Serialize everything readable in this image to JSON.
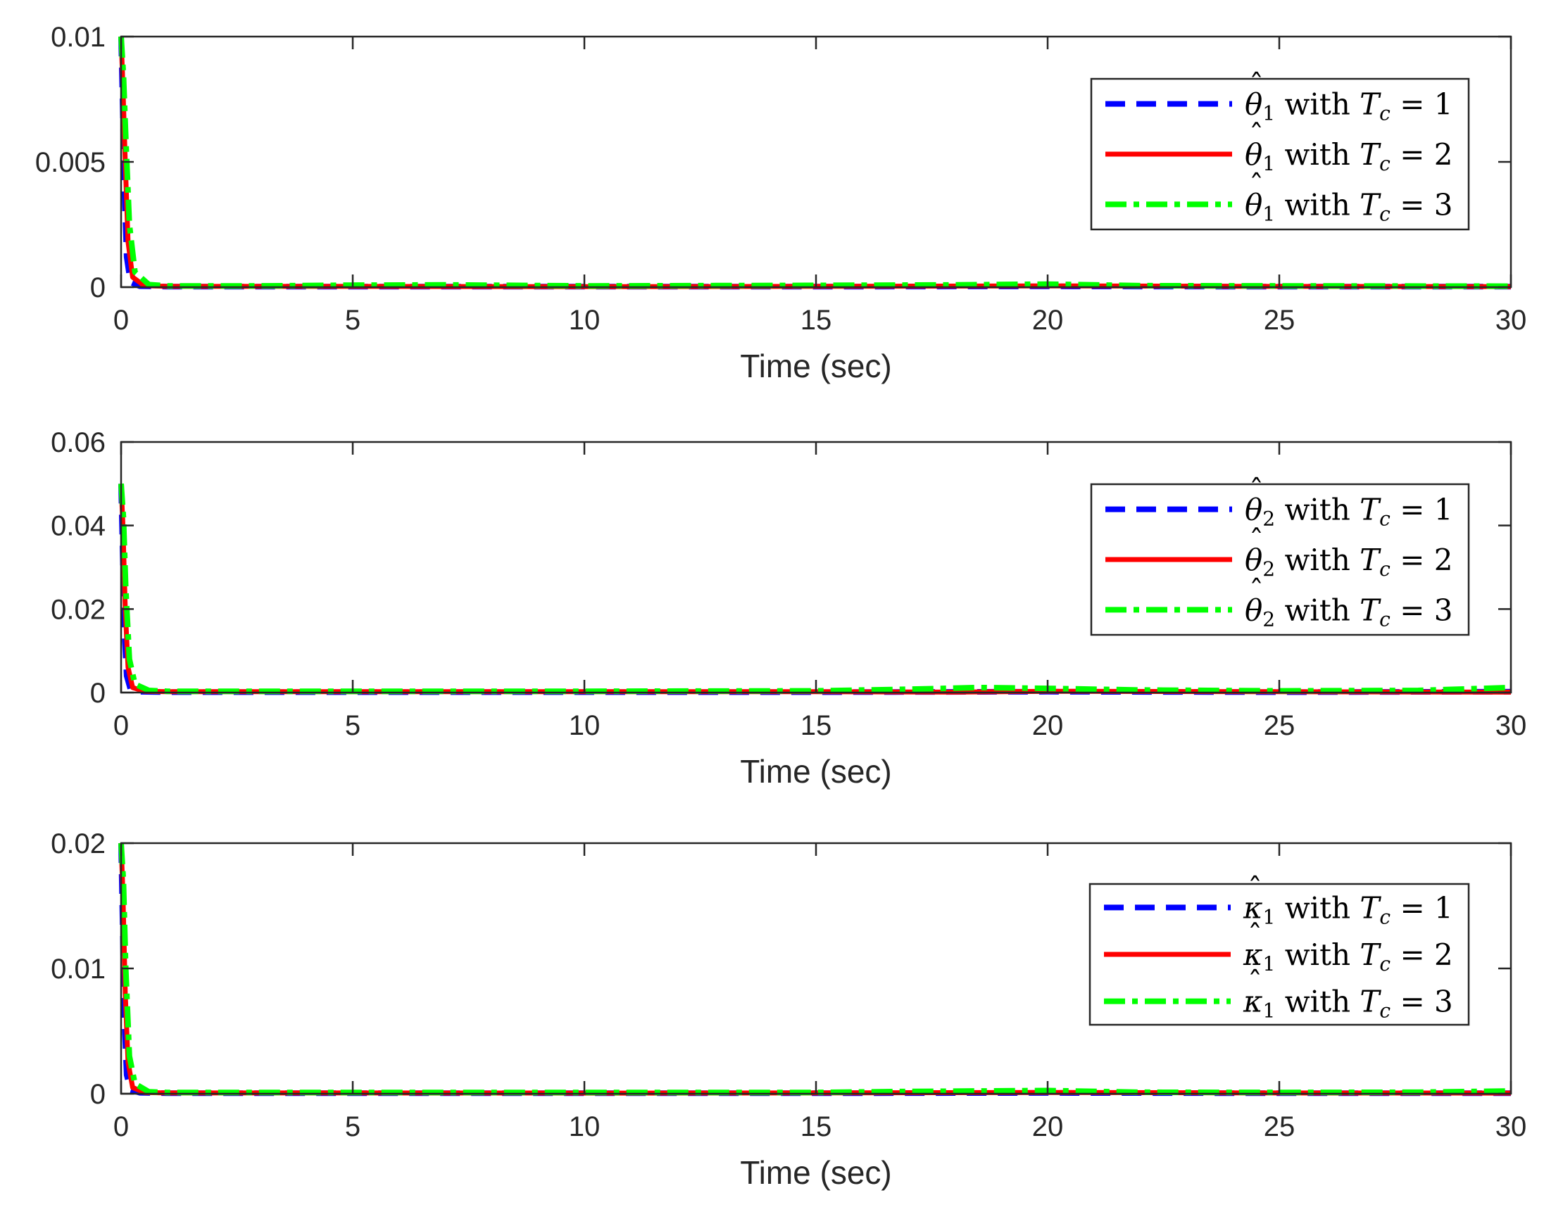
{
  "chart_data": [
    {
      "type": "line",
      "xlabel": "Time (sec)",
      "ylabel": "",
      "xlim": [
        0,
        30
      ],
      "ylim": [
        0,
        0.01
      ],
      "xticks": [
        0,
        5,
        10,
        15,
        20,
        25,
        30
      ],
      "xtick_labels": [
        "0",
        "5",
        "10",
        "15",
        "20",
        "25",
        "30"
      ],
      "yticks": [
        0,
        0.005,
        0.01
      ],
      "ytick_labels": [
        "0",
        "0.005",
        "0.01"
      ],
      "legend_position": "top-right",
      "series": [
        {
          "name": "θ̂1 with Tc = 1",
          "legend": {
            "sym": "θ",
            "sub": "1",
            "mid": " with ",
            "tsym": "T",
            "tsub": "c",
            "eq": " = 1"
          },
          "color": "#0000ff",
          "style": "dashed",
          "x": [
            0,
            0.03,
            0.07,
            0.12,
            0.2,
            0.4,
            1,
            5,
            10,
            15,
            20,
            25,
            30
          ],
          "y": [
            0.01,
            0.0075,
            0.004,
            0.0012,
            0.0002,
            4e-05,
            2e-05,
            2e-05,
            2e-05,
            2e-05,
            3e-05,
            2e-05,
            2e-05
          ]
        },
        {
          "name": "θ̂1 with Tc = 2",
          "legend": {
            "sym": "θ",
            "sub": "1",
            "mid": " with ",
            "tsym": "T",
            "tsub": "c",
            "eq": " = 2"
          },
          "color": "#ff0000",
          "style": "solid",
          "x": [
            0,
            0.04,
            0.09,
            0.15,
            0.25,
            0.5,
            1,
            5,
            10,
            15,
            20,
            25,
            30
          ],
          "y": [
            0.01,
            0.008,
            0.005,
            0.0018,
            0.0004,
            6e-05,
            3e-05,
            3e-05,
            2e-05,
            3e-05,
            5e-05,
            3e-05,
            2e-05
          ]
        },
        {
          "name": "θ̂1 with Tc = 3",
          "legend": {
            "sym": "θ",
            "sub": "1",
            "mid": " with ",
            "tsym": "T",
            "tsub": "c",
            "eq": " = 3"
          },
          "color": "#00ff00",
          "style": "dashdot",
          "x": [
            0,
            0.05,
            0.1,
            0.18,
            0.3,
            0.6,
            1,
            3,
            5,
            7,
            10,
            15,
            18,
            20,
            22,
            25,
            30
          ],
          "y": [
            0.01,
            0.0085,
            0.006,
            0.0025,
            0.0006,
            0.0001,
            5e-05,
            5e-05,
            8e-05,
            9e-05,
            5e-05,
            7e-05,
            9e-05,
            0.00012,
            6e-05,
            5e-05,
            4e-05
          ]
        }
      ]
    },
    {
      "type": "line",
      "xlabel": "Time (sec)",
      "ylabel": "",
      "xlim": [
        0,
        30
      ],
      "ylim": [
        0,
        0.06
      ],
      "xticks": [
        0,
        5,
        10,
        15,
        20,
        25,
        30
      ],
      "xtick_labels": [
        "0",
        "5",
        "10",
        "15",
        "20",
        "25",
        "30"
      ],
      "yticks": [
        0,
        0.02,
        0.04,
        0.06
      ],
      "ytick_labels": [
        "0",
        "0.02",
        "0.04",
        "0.06"
      ],
      "legend_position": "top-right",
      "series": [
        {
          "name": "θ̂2 with Tc = 1",
          "legend": {
            "sym": "θ",
            "sub": "2",
            "mid": " with ",
            "tsym": "T",
            "tsub": "c",
            "eq": " = 1"
          },
          "color": "#0000ff",
          "style": "dashed",
          "x": [
            0,
            0.03,
            0.07,
            0.12,
            0.2,
            0.4,
            1,
            5,
            10,
            15,
            20,
            25,
            30
          ],
          "y": [
            0.05,
            0.035,
            0.015,
            0.004,
            0.0008,
            0.0002,
            0.0001,
            0.0001,
            0.0001,
            0.0001,
            0.0002,
            0.0001,
            0.0002
          ]
        },
        {
          "name": "θ̂2 with Tc = 2",
          "legend": {
            "sym": "θ",
            "sub": "2",
            "mid": " with ",
            "tsym": "T",
            "tsub": "c",
            "eq": " = 2"
          },
          "color": "#ff0000",
          "style": "solid",
          "x": [
            0,
            0.04,
            0.09,
            0.15,
            0.25,
            0.5,
            1,
            5,
            10,
            15,
            18,
            20,
            25,
            30
          ],
          "y": [
            0.05,
            0.04,
            0.02,
            0.006,
            0.0012,
            0.0003,
            0.0002,
            0.0002,
            0.0002,
            0.0002,
            0.0001,
            0.0003,
            0.0002,
            0.0001
          ]
        },
        {
          "name": "θ̂2 with Tc = 3",
          "legend": {
            "sym": "θ",
            "sub": "2",
            "mid": " with ",
            "tsym": "T",
            "tsub": "c",
            "eq": " = 3"
          },
          "color": "#00ff00",
          "style": "dashdot",
          "x": [
            0,
            0.05,
            0.1,
            0.18,
            0.3,
            0.6,
            1,
            5,
            10,
            15,
            17,
            18.5,
            20,
            22,
            25,
            28,
            30
          ],
          "y": [
            0.05,
            0.042,
            0.025,
            0.008,
            0.002,
            0.0005,
            0.0003,
            0.0003,
            0.0003,
            0.0004,
            0.0008,
            0.0012,
            0.001,
            0.0006,
            0.0004,
            0.0005,
            0.0012
          ]
        }
      ]
    },
    {
      "type": "line",
      "xlabel": "Time (sec)",
      "ylabel": "",
      "xlim": [
        0,
        30
      ],
      "ylim": [
        0,
        0.02
      ],
      "xticks": [
        0,
        5,
        10,
        15,
        20,
        25,
        30
      ],
      "xtick_labels": [
        "0",
        "5",
        "10",
        "15",
        "20",
        "25",
        "30"
      ],
      "yticks": [
        0,
        0.01,
        0.02
      ],
      "ytick_labels": [
        "0",
        "0.01",
        "0.02"
      ],
      "legend_position": "top-right",
      "series": [
        {
          "name": "κ̂1 with Tc = 1",
          "legend": {
            "sym": "κ",
            "sub": "1",
            "mid": " with ",
            "tsym": "T",
            "tsub": "c",
            "eq": " = 1"
          },
          "color": "#0000ff",
          "style": "dashed",
          "x": [
            0,
            0.03,
            0.07,
            0.12,
            0.2,
            0.4,
            1,
            5,
            10,
            15,
            20,
            25,
            30
          ],
          "y": [
            0.02,
            0.014,
            0.006,
            0.0015,
            0.0003,
            8e-05,
            4e-05,
            4e-05,
            4e-05,
            4e-05,
            6e-05,
            4e-05,
            4e-05
          ]
        },
        {
          "name": "κ̂1 with Tc = 2",
          "legend": {
            "sym": "κ",
            "sub": "1",
            "mid": " with ",
            "tsym": "T",
            "tsub": "c",
            "eq": " = 2"
          },
          "color": "#ff0000",
          "style": "solid",
          "x": [
            0,
            0.04,
            0.09,
            0.15,
            0.25,
            0.5,
            1,
            5,
            10,
            15,
            20,
            25,
            30
          ],
          "y": [
            0.02,
            0.016,
            0.008,
            0.0025,
            0.0005,
            0.0001,
            6e-05,
            6e-05,
            5e-05,
            6e-05,
            0.0001,
            6e-05,
            5e-05
          ]
        },
        {
          "name": "κ̂1 with Tc = 3",
          "legend": {
            "sym": "κ",
            "sub": "1",
            "mid": " with ",
            "tsym": "T",
            "tsub": "c",
            "eq": " = 3"
          },
          "color": "#00ff00",
          "style": "dashdot",
          "x": [
            0,
            0.05,
            0.1,
            0.18,
            0.3,
            0.6,
            1,
            5,
            10,
            15,
            17,
            20,
            22,
            25,
            28,
            30
          ],
          "y": [
            0.02,
            0.017,
            0.01,
            0.003,
            0.0008,
            0.00015,
            0.0001,
            0.0001,
            0.0001,
            0.0001,
            0.00018,
            0.00025,
            0.00012,
            0.0001,
            0.00012,
            0.00022
          ]
        }
      ]
    }
  ]
}
